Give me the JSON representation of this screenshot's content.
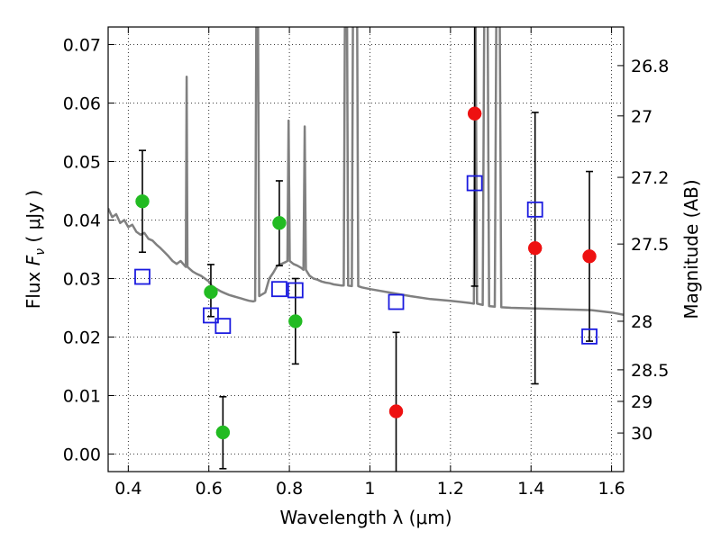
{
  "chart_data": {
    "type": "scatter",
    "xlabel": "Wavelength  λ (μm)",
    "ylabel": "Flux  F_ν  ( μJy )",
    "ylabel_parts": {
      "prefix": "Flux  ",
      "symbol": "F",
      "subscript": "ν",
      "suffix": "  ( μJy )"
    },
    "y2label": "Magnitude (AB)",
    "xlim": [
      0.35,
      1.63
    ],
    "ylim": [
      -0.003,
      0.073
    ],
    "xticks": [
      0.4,
      0.6,
      0.8,
      1.0,
      1.2,
      1.4,
      1.6
    ],
    "xtick_labels": [
      "0.4",
      "0.6",
      "0.8",
      "1",
      "1.2",
      "1.4",
      "1.6"
    ],
    "yticks": [
      0.0,
      0.01,
      0.02,
      0.03,
      0.04,
      0.05,
      0.06,
      0.07
    ],
    "ytick_labels": [
      "0.00",
      "0.01",
      "0.02",
      "0.03",
      "0.04",
      "0.05",
      "0.06",
      "0.07"
    ],
    "y2ticks": [
      {
        "label": "26.8",
        "flux": 0.0664
      },
      {
        "label": "27",
        "flux": 0.0578
      },
      {
        "label": "27.2",
        "flux": 0.0473
      },
      {
        "label": "27.5",
        "flux": 0.0359
      },
      {
        "label": "28",
        "flux": 0.0227
      },
      {
        "label": "28.5",
        "flux": 0.0144
      },
      {
        "label": "29",
        "flux": 0.009
      },
      {
        "label": "30",
        "flux": 0.0036
      }
    ],
    "grid": true,
    "colors": {
      "green": "#22bb22",
      "red": "#ee1111",
      "blue": "#1a1adf",
      "model": "#808080"
    },
    "series": [
      {
        "marker": "filled-circle",
        "color": "green",
        "points": [
          {
            "x": 0.435,
            "y": 0.0432,
            "lo": 0.0345,
            "hi": 0.0519
          },
          {
            "x": 0.605,
            "y": 0.0277,
            "lo": 0.0235,
            "hi": 0.0324
          },
          {
            "x": 0.635,
            "y": 0.0037,
            "lo": -0.0025,
            "hi": 0.0098
          },
          {
            "x": 0.775,
            "y": 0.0395,
            "lo": 0.0322,
            "hi": 0.0467
          },
          {
            "x": 0.815,
            "y": 0.0227,
            "lo": 0.0154,
            "hi": 0.03
          }
        ]
      },
      {
        "marker": "filled-circle",
        "color": "red",
        "points": [
          {
            "x": 1.065,
            "y": 0.0073,
            "lo": -0.004,
            "hi": 0.0208
          },
          {
            "x": 1.26,
            "y": 0.0582,
            "lo": 0.0287,
            "hi": 0.076
          },
          {
            "x": 1.41,
            "y": 0.0352,
            "lo": 0.012,
            "hi": 0.0584
          },
          {
            "x": 1.545,
            "y": 0.0338,
            "lo": 0.0193,
            "hi": 0.0483
          }
        ]
      },
      {
        "marker": "open-square",
        "color": "blue",
        "points": [
          {
            "x": 0.435,
            "y": 0.0303
          },
          {
            "x": 0.605,
            "y": 0.0237
          },
          {
            "x": 0.635,
            "y": 0.0219
          },
          {
            "x": 0.775,
            "y": 0.0282
          },
          {
            "x": 0.815,
            "y": 0.028
          },
          {
            "x": 1.065,
            "y": 0.026
          },
          {
            "x": 1.26,
            "y": 0.0463
          },
          {
            "x": 1.41,
            "y": 0.0418
          },
          {
            "x": 1.545,
            "y": 0.0201
          }
        ]
      }
    ],
    "model_spectrum": {
      "color": "model",
      "points": [
        [
          0.35,
          0.042
        ],
        [
          0.36,
          0.0405
        ],
        [
          0.37,
          0.041
        ],
        [
          0.38,
          0.0395
        ],
        [
          0.39,
          0.04
        ],
        [
          0.4,
          0.0388
        ],
        [
          0.41,
          0.0392
        ],
        [
          0.42,
          0.038
        ],
        [
          0.43,
          0.0375
        ],
        [
          0.44,
          0.0378
        ],
        [
          0.45,
          0.0368
        ],
        [
          0.46,
          0.0365
        ],
        [
          0.47,
          0.0358
        ],
        [
          0.48,
          0.0352
        ],
        [
          0.49,
          0.0345
        ],
        [
          0.5,
          0.0338
        ],
        [
          0.51,
          0.033
        ],
        [
          0.52,
          0.0325
        ],
        [
          0.53,
          0.033
        ],
        [
          0.54,
          0.0322
        ],
        [
          0.543,
          0.032
        ],
        [
          0.545,
          0.0645
        ],
        [
          0.547,
          0.032
        ],
        [
          0.55,
          0.0318
        ],
        [
          0.56,
          0.0312
        ],
        [
          0.57,
          0.0308
        ],
        [
          0.58,
          0.0305
        ],
        [
          0.59,
          0.03
        ],
        [
          0.6,
          0.0295
        ],
        [
          0.61,
          0.0285
        ],
        [
          0.62,
          0.0282
        ],
        [
          0.63,
          0.0278
        ],
        [
          0.64,
          0.0275
        ],
        [
          0.65,
          0.0272
        ],
        [
          0.66,
          0.027
        ],
        [
          0.67,
          0.0268
        ],
        [
          0.68,
          0.0266
        ],
        [
          0.69,
          0.0264
        ],
        [
          0.7,
          0.0262
        ],
        [
          0.71,
          0.0261
        ],
        [
          0.715,
          0.0262
        ],
        [
          0.718,
          0.078
        ],
        [
          0.722,
          0.078
        ],
        [
          0.725,
          0.027
        ],
        [
          0.73,
          0.0272
        ],
        [
          0.74,
          0.0276
        ],
        [
          0.75,
          0.03
        ],
        [
          0.76,
          0.031
        ],
        [
          0.77,
          0.0322
        ],
        [
          0.78,
          0.0325
        ],
        [
          0.79,
          0.0328
        ],
        [
          0.795,
          0.033
        ],
        [
          0.798,
          0.057
        ],
        [
          0.801,
          0.033
        ],
        [
          0.81,
          0.0325
        ],
        [
          0.82,
          0.0322
        ],
        [
          0.83,
          0.0318
        ],
        [
          0.835,
          0.0315
        ],
        [
          0.838,
          0.056
        ],
        [
          0.841,
          0.0315
        ],
        [
          0.85,
          0.0305
        ],
        [
          0.86,
          0.03
        ],
        [
          0.87,
          0.0298
        ],
        [
          0.88,
          0.0295
        ],
        [
          0.89,
          0.0293
        ],
        [
          0.9,
          0.0292
        ],
        [
          0.91,
          0.029
        ],
        [
          0.92,
          0.0289
        ],
        [
          0.93,
          0.0288
        ],
        [
          0.935,
          0.0288
        ],
        [
          0.938,
          0.078
        ],
        [
          0.943,
          0.078
        ],
        [
          0.946,
          0.0288
        ],
        [
          0.955,
          0.0287
        ],
        [
          0.958,
          0.078
        ],
        [
          0.968,
          0.078
        ],
        [
          0.971,
          0.0287
        ],
        [
          0.98,
          0.0285
        ],
        [
          1.0,
          0.0282
        ],
        [
          1.05,
          0.0276
        ],
        [
          1.1,
          0.027
        ],
        [
          1.15,
          0.0265
        ],
        [
          1.2,
          0.0262
        ],
        [
          1.25,
          0.0258
        ],
        [
          1.258,
          0.0257
        ],
        [
          1.262,
          0.078
        ],
        [
          1.266,
          0.0257
        ],
        [
          1.28,
          0.0255
        ],
        [
          1.284,
          0.078
        ],
        [
          1.292,
          0.078
        ],
        [
          1.296,
          0.0253
        ],
        [
          1.31,
          0.0252
        ],
        [
          1.314,
          0.078
        ],
        [
          1.322,
          0.078
        ],
        [
          1.326,
          0.0251
        ],
        [
          1.35,
          0.025
        ],
        [
          1.4,
          0.0249
        ],
        [
          1.45,
          0.0248
        ],
        [
          1.5,
          0.0247
        ],
        [
          1.55,
          0.0246
        ],
        [
          1.6,
          0.0242
        ],
        [
          1.63,
          0.0238
        ]
      ]
    }
  }
}
